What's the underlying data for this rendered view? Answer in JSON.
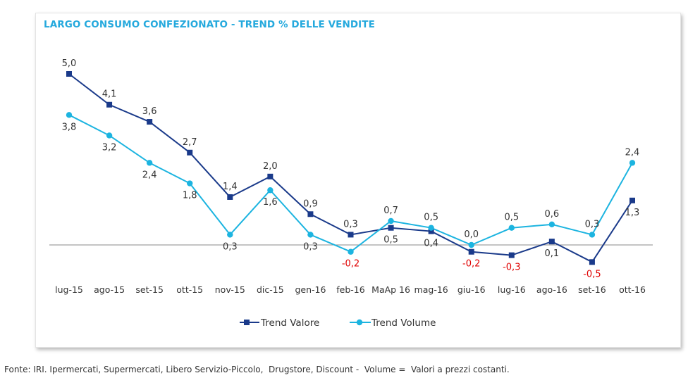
{
  "footer": {
    "source": "Fonte: IRI. Ipermercati, Supermercati, Libero Servizio-Piccolo,  Drugstore, Discount -  Volume =  Valori a prezzi costanti."
  },
  "chart_data": {
    "type": "line",
    "title": "LARGO CONSUMO CONFEZIONATO - TREND % DELLE VENDITE",
    "xlabel": "",
    "ylabel": "",
    "categories": [
      "lug-15",
      "ago-15",
      "set-15",
      "ott-15",
      "nov-15",
      "dic-15",
      "gen-16",
      "feb-16",
      "MaAp 16",
      "mag-16",
      "giu-16",
      "lug-16",
      "ago-16",
      "set-16",
      "ott-16"
    ],
    "series": [
      {
        "name": "Trend Valore",
        "color": "#1a3a8a",
        "marker": "square",
        "values": [
          5.0,
          4.1,
          3.6,
          2.7,
          1.4,
          2.0,
          0.9,
          0.3,
          0.5,
          0.4,
          -0.2,
          -0.3,
          0.1,
          -0.5,
          1.3
        ],
        "labels": [
          "5,0",
          "4,1",
          "3,6",
          "2,7",
          "1,4",
          "2,0",
          "0,9",
          "0,3",
          "0,5",
          "0,4",
          "-0,2",
          "-0,3",
          "0,1",
          "-0,5",
          "1,3"
        ]
      },
      {
        "name": "Trend Volume",
        "color": "#1cb4e0",
        "marker": "circle",
        "values": [
          3.8,
          3.2,
          2.4,
          1.8,
          0.3,
          1.6,
          0.3,
          -0.2,
          0.7,
          0.5,
          0.0,
          0.5,
          0.6,
          0.3,
          2.4
        ],
        "labels": [
          "3,8",
          "3,2",
          "2,4",
          "1,8",
          "0,3",
          "1,6",
          "0,3",
          "-0,2",
          "0,7",
          "0,5",
          "0,0",
          "0,5",
          "0,6",
          "0,3",
          "2,4"
        ]
      }
    ],
    "ylim": [
      -1.0,
      5.5
    ],
    "grid": false,
    "legend": "bottom",
    "negative_label_color": "#e00000"
  }
}
